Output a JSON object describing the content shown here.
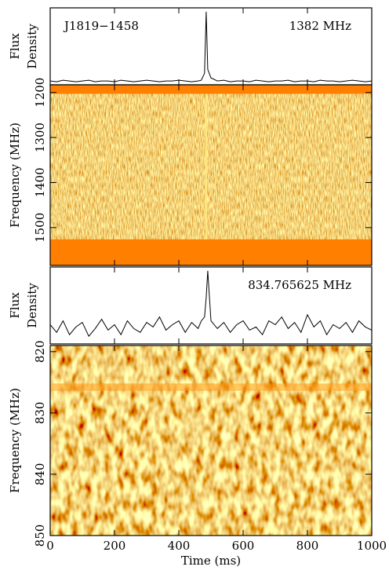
{
  "chart_data": [
    {
      "type": "line",
      "ylabel": [
        "Flux",
        "Density"
      ],
      "annotations": [
        "J1819−1458",
        "1382 MHz"
      ],
      "xlim": [
        0,
        1000
      ],
      "xticks": [
        0,
        200,
        400,
        600,
        800,
        1000
      ],
      "ylim": [
        0,
        1
      ],
      "color": "#000000",
      "x": [
        0,
        20,
        40,
        60,
        80,
        100,
        120,
        140,
        160,
        180,
        200,
        220,
        240,
        260,
        280,
        300,
        320,
        340,
        360,
        380,
        400,
        420,
        440,
        460,
        470,
        480,
        485,
        490,
        500,
        520,
        540,
        560,
        580,
        600,
        620,
        640,
        660,
        680,
        700,
        720,
        740,
        760,
        780,
        800,
        820,
        840,
        860,
        880,
        900,
        920,
        940,
        960,
        980,
        1000
      ],
      "values": [
        0.05,
        0.04,
        0.06,
        0.05,
        0.04,
        0.05,
        0.06,
        0.04,
        0.05,
        0.05,
        0.04,
        0.06,
        0.05,
        0.04,
        0.05,
        0.06,
        0.05,
        0.04,
        0.05,
        0.05,
        0.06,
        0.05,
        0.04,
        0.05,
        0.06,
        0.15,
        0.95,
        0.2,
        0.09,
        0.05,
        0.06,
        0.04,
        0.05,
        0.05,
        0.04,
        0.06,
        0.05,
        0.04,
        0.05,
        0.05,
        0.06,
        0.04,
        0.05,
        0.05,
        0.04,
        0.06,
        0.05,
        0.05,
        0.04,
        0.05,
        0.06,
        0.05,
        0.04,
        0.05
      ]
    },
    {
      "type": "heatmap",
      "ylabel": "Frequency (MHz)",
      "xlim": [
        0,
        1000
      ],
      "xticks": [
        0,
        200,
        400,
        600,
        800,
        1000
      ],
      "ylim": [
        1183,
        1584
      ],
      "yticks": [
        1200,
        1300,
        1400,
        1500
      ],
      "mask_color": "#ff8000",
      "masked_bands": [
        [
          1183,
          1203
        ],
        [
          1526,
          1584
        ]
      ],
      "pulse": {
        "x": 485,
        "y": [
          1203,
          1526
        ],
        "color": "#ffe680"
      }
    },
    {
      "type": "line",
      "ylabel": [
        "Flux",
        "Density"
      ],
      "annotations": [
        "834.765625 MHz"
      ],
      "xlim": [
        0,
        1000
      ],
      "xticks": [
        0,
        200,
        400,
        600,
        800,
        1000
      ],
      "ylim": [
        0,
        1
      ],
      "color": "#000000",
      "x": [
        0,
        20,
        40,
        60,
        80,
        100,
        120,
        140,
        160,
        180,
        200,
        220,
        240,
        260,
        280,
        300,
        320,
        340,
        360,
        380,
        400,
        420,
        440,
        460,
        470,
        480,
        485,
        490,
        500,
        520,
        540,
        560,
        580,
        600,
        620,
        640,
        660,
        680,
        700,
        720,
        740,
        760,
        780,
        800,
        820,
        840,
        860,
        880,
        900,
        920,
        940,
        960,
        980,
        1000
      ],
      "values": [
        0.25,
        0.15,
        0.3,
        0.12,
        0.22,
        0.28,
        0.1,
        0.2,
        0.32,
        0.18,
        0.25,
        0.12,
        0.3,
        0.2,
        0.15,
        0.28,
        0.22,
        0.35,
        0.18,
        0.25,
        0.3,
        0.15,
        0.28,
        0.2,
        0.3,
        0.35,
        0.6,
        0.95,
        0.3,
        0.2,
        0.28,
        0.15,
        0.25,
        0.3,
        0.18,
        0.22,
        0.12,
        0.3,
        0.25,
        0.35,
        0.2,
        0.28,
        0.15,
        0.38,
        0.22,
        0.3,
        0.12,
        0.25,
        0.2,
        0.28,
        0.15,
        0.3,
        0.22,
        0.18
      ]
    },
    {
      "type": "heatmap",
      "ylabel": "Frequency (MHz)",
      "xlabel": "Time (ms)",
      "xlim": [
        0,
        1000
      ],
      "xticks": [
        0,
        200,
        400,
        600,
        800,
        1000
      ],
      "ylim": [
        819,
        850
      ],
      "yticks": [
        820,
        830,
        840,
        850
      ],
      "mask_color": "#ff9a1a",
      "masked_bands": [
        [
          825.2,
          826.4
        ]
      ]
    }
  ]
}
